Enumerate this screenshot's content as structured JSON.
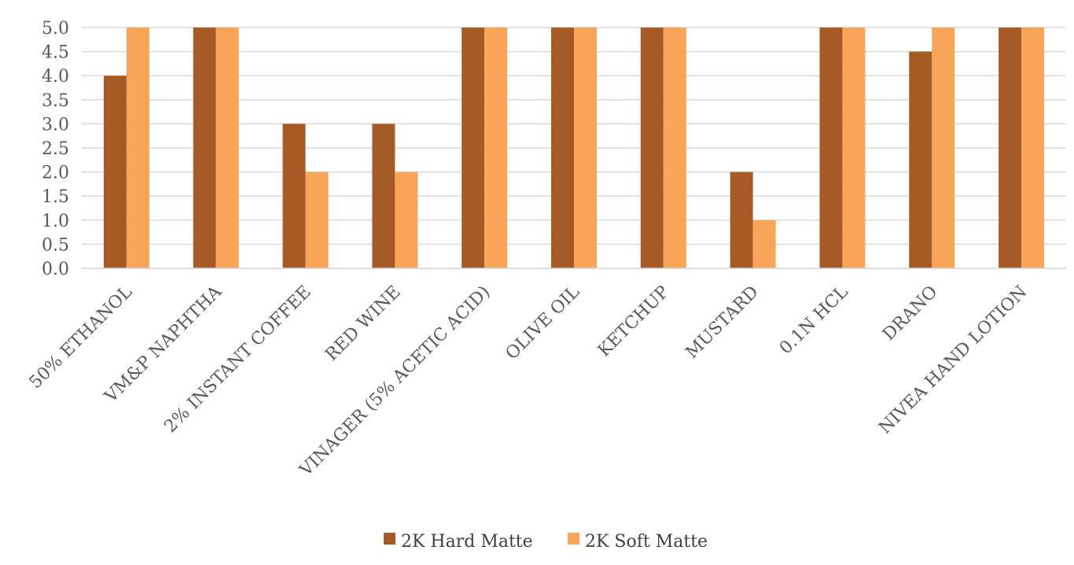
{
  "chart_data": {
    "type": "bar",
    "title": "",
    "xlabel": "",
    "ylabel": "",
    "ylim": [
      0,
      5
    ],
    "yticks": [
      "0.0",
      "0.5",
      "1.0",
      "1.5",
      "2.0",
      "2.5",
      "3.0",
      "3.5",
      "4.0",
      "4.5",
      "5.0"
    ],
    "grid": true,
    "legend_position": "bottom",
    "categories": [
      "50% ETHANOL",
      "VM&P NAPHTHA",
      "2% INSTANT COFFEE",
      "RED WINE",
      "VINAGER (5% ACETIC ACID)",
      "OLIVE OIL",
      "KETCHUP",
      "MUSTARD",
      "0.1N HCL",
      "DRANO",
      "NIVEA HAND LOTION"
    ],
    "series": [
      {
        "name": "2K Hard Matte",
        "color": "#A65B27",
        "values": [
          4,
          5,
          3,
          3,
          5,
          5,
          5,
          2,
          5,
          4.5,
          5
        ]
      },
      {
        "name": "2K Soft Matte",
        "color": "#F8A55A",
        "values": [
          5,
          5,
          2,
          2,
          5,
          5,
          5,
          1,
          5,
          5,
          5
        ]
      }
    ]
  }
}
